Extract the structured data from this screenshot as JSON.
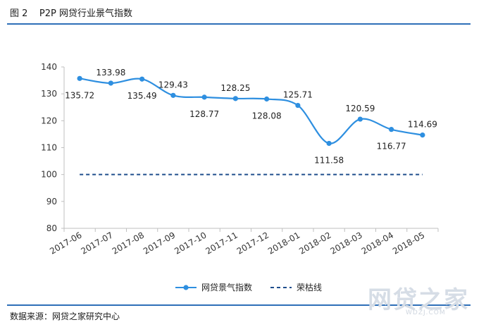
{
  "header": {
    "title": "图 2    P2P 网贷行业景气指数"
  },
  "footer": {
    "source": "数据来源：网贷之家研究中心"
  },
  "watermark": {
    "text": "网贷之家",
    "sub": "WDZJ.COM"
  },
  "colors": {
    "series": "#2e8fe0",
    "baseline": "#1f4e8c",
    "rule": "#2e6fb8"
  },
  "chart_data": {
    "type": "line",
    "title": "",
    "xlabel": "",
    "ylabel": "",
    "ylim": [
      80,
      140
    ],
    "yticks": [
      80,
      90,
      100,
      110,
      120,
      130,
      140
    ],
    "x": [
      "2017-06",
      "2017-07",
      "2017-08",
      "2017-09",
      "2017-10",
      "2017-11",
      "2017-12",
      "2018-01",
      "2018-02",
      "2018-03",
      "2018-04",
      "2018-05"
    ],
    "series": [
      {
        "name": "网贷景气指数",
        "style": "solid-marker",
        "values": [
          135.72,
          133.98,
          135.49,
          129.43,
          128.77,
          128.25,
          128.08,
          125.71,
          111.58,
          120.59,
          116.77,
          114.69
        ],
        "labels": [
          "135.72",
          "133.98",
          "135.49",
          "129.43",
          "128.77",
          "128.25",
          "128.08",
          "125.71",
          "111.58",
          "120.59",
          "116.77",
          "114.69"
        ]
      },
      {
        "name": "荣枯线",
        "style": "dashed",
        "values": [
          100,
          100,
          100,
          100,
          100,
          100,
          100,
          100,
          100,
          100,
          100,
          100
        ]
      }
    ],
    "grid": false,
    "legend": "bottom-center"
  }
}
